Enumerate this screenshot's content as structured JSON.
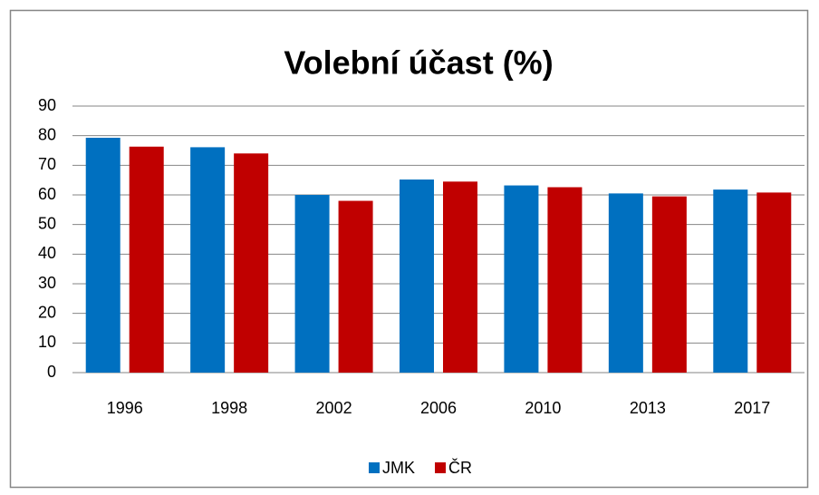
{
  "chart_data": {
    "type": "bar",
    "title": "Volební účast (%)",
    "categories": [
      "1996",
      "1998",
      "2002",
      "2006",
      "2010",
      "2013",
      "2017"
    ],
    "series": [
      {
        "name": "JMK",
        "color": "#0070c0",
        "values": [
          79.3,
          76.1,
          60.0,
          65.2,
          63.2,
          60.5,
          61.8
        ]
      },
      {
        "name": "ČR",
        "color": "#c00000",
        "values": [
          76.3,
          74.0,
          58.0,
          64.5,
          62.6,
          59.5,
          60.8
        ]
      }
    ],
    "ylim": [
      0,
      90
    ],
    "yticks": [
      0,
      10,
      20,
      30,
      40,
      50,
      60,
      70,
      80,
      90
    ],
    "grid": true,
    "legend": "bottom"
  }
}
